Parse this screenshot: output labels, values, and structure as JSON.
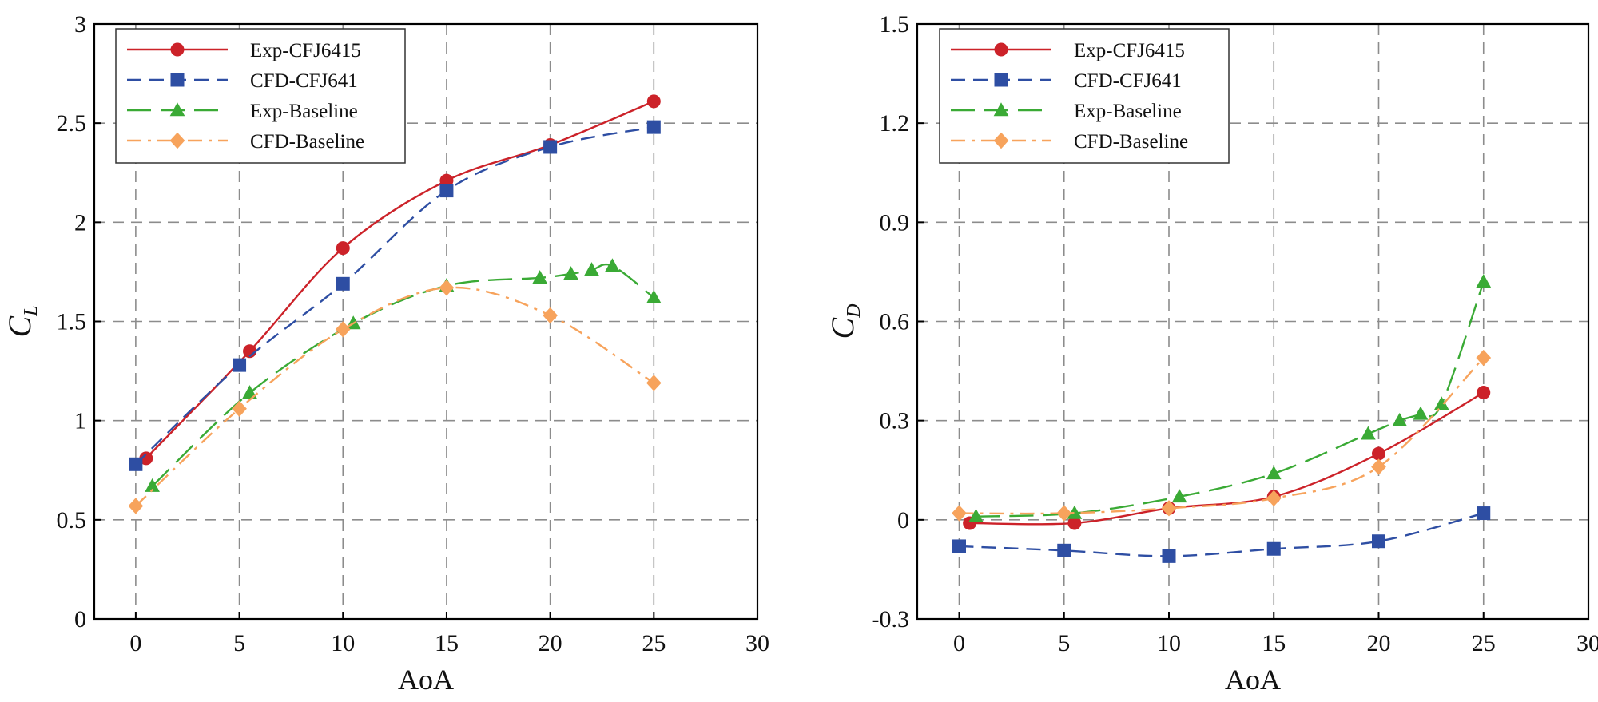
{
  "chart_data": [
    {
      "type": "line",
      "title": "",
      "xlabel": "AoA",
      "ylabel": "C",
      "ylabel_sub": "L",
      "xlim": [
        -2,
        30
      ],
      "ylim": [
        0,
        3
      ],
      "xticks": [
        0,
        5,
        10,
        15,
        20,
        25,
        30
      ],
      "yticks": [
        0,
        0.5,
        1,
        1.5,
        2,
        2.5,
        3
      ],
      "xtick_labels": [
        "0",
        "5",
        "10",
        "15",
        "20",
        "25",
        "30"
      ],
      "ytick_labels": [
        "0",
        "0.5",
        "1",
        "1.5",
        "2",
        "2.5",
        "3"
      ],
      "grid": true,
      "legend_position": "top-left",
      "series": [
        {
          "name": "Exp-CFJ6415",
          "color": "#cc2229",
          "marker": "circle",
          "dash": "solid",
          "x": [
            0.5,
            5.5,
            10,
            15,
            20,
            25
          ],
          "y": [
            0.81,
            1.35,
            1.87,
            2.21,
            2.39,
            2.61
          ]
        },
        {
          "name": "CFD-CFJ641",
          "color": "#2e4ea3",
          "marker": "square",
          "dash": "dashed",
          "x": [
            0,
            5,
            10,
            15,
            20,
            25
          ],
          "y": [
            0.78,
            1.28,
            1.69,
            2.16,
            2.38,
            2.48
          ]
        },
        {
          "name": "Exp-Baseline",
          "color": "#3aaa35",
          "marker": "triangle",
          "dash": "longdash",
          "x": [
            0.8,
            5.5,
            10.5,
            15,
            19.5,
            21,
            22,
            23,
            25
          ],
          "y": [
            0.67,
            1.14,
            1.49,
            1.68,
            1.72,
            1.74,
            1.76,
            1.78,
            1.62
          ]
        },
        {
          "name": "CFD-Baseline",
          "color": "#f7a35c",
          "marker": "diamond",
          "dash": "dashdot",
          "x": [
            0,
            5,
            10,
            15,
            20,
            25
          ],
          "y": [
            0.57,
            1.06,
            1.46,
            1.67,
            1.53,
            1.19
          ]
        }
      ]
    },
    {
      "type": "line",
      "title": "",
      "xlabel": "AoA",
      "ylabel": "C",
      "ylabel_sub": "D",
      "xlim": [
        -2,
        30
      ],
      "ylim": [
        -0.3,
        1.5
      ],
      "xticks": [
        0,
        5,
        10,
        15,
        20,
        25,
        30
      ],
      "yticks": [
        -0.3,
        0,
        0.3,
        0.6,
        0.9,
        1.2,
        1.5
      ],
      "xtick_labels": [
        "0",
        "5",
        "10",
        "15",
        "20",
        "25",
        "30"
      ],
      "ytick_labels": [
        "-0.3",
        "0",
        "0.3",
        "0.6",
        "0.9",
        "1.2",
        "1.5"
      ],
      "grid": true,
      "legend_position": "top-left",
      "series": [
        {
          "name": "Exp-CFJ6415",
          "color": "#cc2229",
          "marker": "circle",
          "dash": "solid",
          "x": [
            0.5,
            5.5,
            10,
            15,
            20,
            25
          ],
          "y": [
            -0.01,
            -0.01,
            0.035,
            0.07,
            0.2,
            0.385
          ]
        },
        {
          "name": "CFD-CFJ641",
          "color": "#2e4ea3",
          "marker": "square",
          "dash": "dashed",
          "x": [
            0,
            5,
            10,
            15,
            20,
            25
          ],
          "y": [
            -0.08,
            -0.093,
            -0.11,
            -0.088,
            -0.065,
            0.02
          ]
        },
        {
          "name": "Exp-Baseline",
          "color": "#3aaa35",
          "marker": "triangle",
          "dash": "longdash",
          "x": [
            0.8,
            5.5,
            10.5,
            15,
            19.5,
            21,
            22,
            23,
            25
          ],
          "y": [
            0.01,
            0.02,
            0.07,
            0.14,
            0.26,
            0.3,
            0.32,
            0.35,
            0.72
          ]
        },
        {
          "name": "CFD-Baseline",
          "color": "#f7a35c",
          "marker": "diamond",
          "dash": "dashdot",
          "x": [
            0,
            5,
            10,
            15,
            20,
            25
          ],
          "y": [
            0.02,
            0.02,
            0.035,
            0.065,
            0.16,
            0.49
          ]
        }
      ]
    }
  ]
}
